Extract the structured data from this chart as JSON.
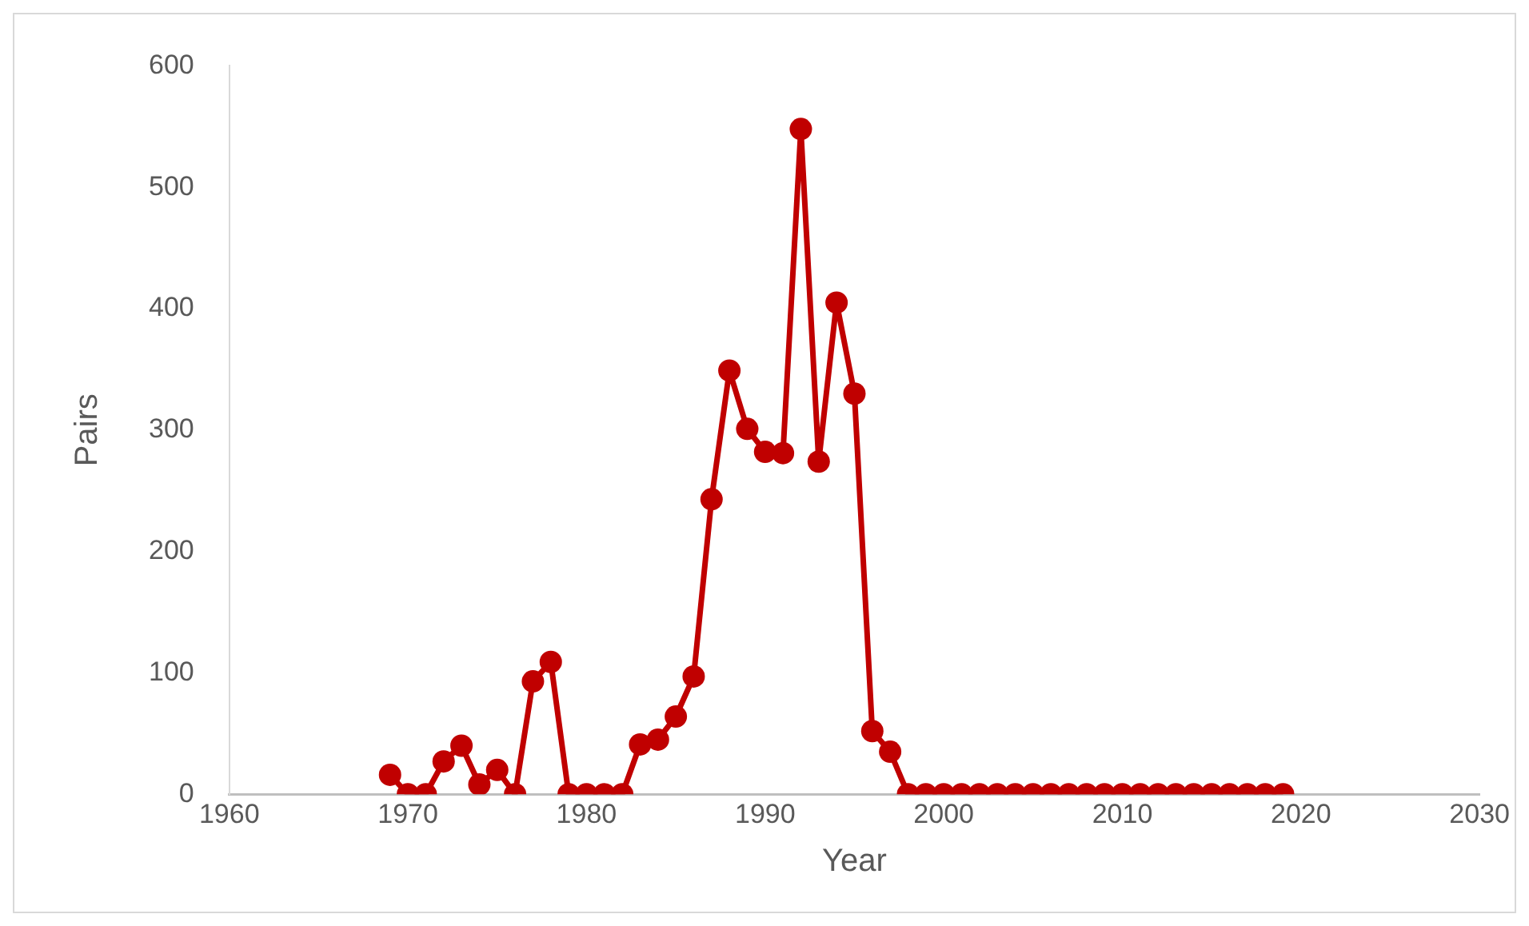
{
  "chart_data": {
    "type": "line",
    "xlabel": "Year",
    "ylabel": "Pairs",
    "x": [
      1969,
      1970,
      1971,
      1972,
      1973,
      1974,
      1975,
      1976,
      1977,
      1978,
      1979,
      1980,
      1981,
      1982,
      1983,
      1984,
      1985,
      1986,
      1987,
      1988,
      1989,
      1990,
      1991,
      1992,
      1993,
      1994,
      1995,
      1996,
      1997,
      1998,
      1999,
      2000,
      2001,
      2002,
      2003,
      2004,
      2005,
      2006,
      2007,
      2008,
      2009,
      2010,
      2011,
      2012,
      2013,
      2014,
      2015,
      2016,
      2017,
      2018,
      2019
    ],
    "series": [
      {
        "color": "#c00000",
        "values": [
          16,
          0,
          0,
          27,
          40,
          8,
          20,
          0,
          93,
          109,
          0,
          0,
          0,
          0,
          41,
          45,
          64,
          97,
          243,
          349,
          301,
          282,
          281,
          548,
          274,
          405,
          330,
          52,
          35,
          0,
          0,
          0,
          0,
          0,
          0,
          0,
          0,
          0,
          0,
          0,
          0,
          0,
          0,
          0,
          0,
          0,
          0,
          0,
          0,
          0,
          0
        ]
      }
    ],
    "xlim": [
      1960,
      2030
    ],
    "xticks": [
      1960,
      1970,
      1980,
      1990,
      2000,
      2010,
      2020,
      2030
    ],
    "ylim": [
      0,
      600
    ],
    "yticks": [
      0,
      100,
      200,
      300,
      400,
      500,
      600
    ],
    "grid": false,
    "legend": false,
    "marker": "circle",
    "line_style": "solid"
  }
}
